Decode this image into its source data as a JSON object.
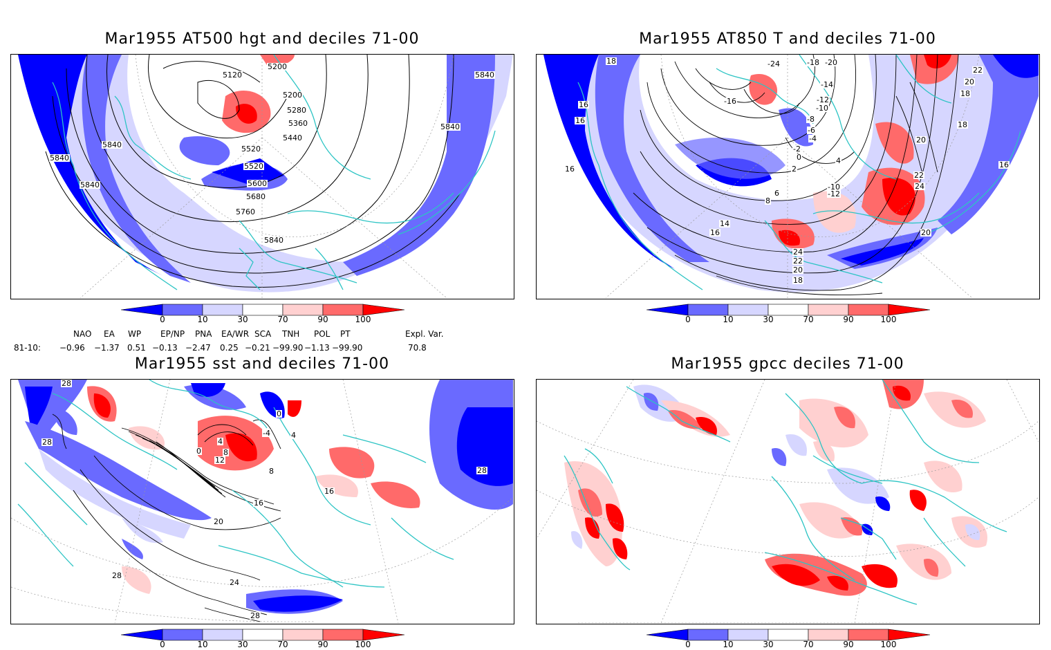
{
  "panels": [
    {
      "id": "p1",
      "title": "Mar1955 AT500 hgt and deciles 71-00",
      "contour_labels": [
        "5200",
        "5120",
        "5200",
        "5280",
        "5360",
        "5440",
        "5520",
        "5520",
        "5600",
        "5680",
        "5760",
        "5840",
        "5840",
        "5840",
        "5840",
        "5840",
        "5840"
      ]
    },
    {
      "id": "p2",
      "title": "Mar1955 AT850 T and deciles 71-00",
      "contour_labels": [
        "18",
        "-24",
        "-18",
        "-20",
        "-16",
        "-14",
        "-12",
        "-10",
        "-8",
        "-6",
        "-4",
        "-2",
        "0",
        "2",
        "4",
        "6",
        "8",
        "-10",
        "-12",
        "14",
        "16",
        "18",
        "20",
        "22",
        "24",
        "16",
        "16",
        "16",
        "18",
        "20",
        "22",
        "24",
        "22",
        "20",
        "18",
        "20",
        "16"
      ]
    },
    {
      "id": "p3",
      "title": "Mar1955 sst and deciles 71-00",
      "contour_labels": [
        "28",
        "28",
        "0",
        "4",
        "8",
        "12",
        "-4",
        "0",
        "4",
        "8",
        "16",
        "16",
        "20",
        "24",
        "28",
        "28",
        "28"
      ]
    },
    {
      "id": "p4",
      "title": "Mar1955 gpcc deciles 71-00",
      "contour_labels": []
    }
  ],
  "colorbar": {
    "ticks": [
      "0",
      "10",
      "30",
      "70",
      "90",
      "100"
    ],
    "colors": [
      "#0000ff",
      "#6a6aff",
      "#d6d6ff",
      "#ffffff",
      "#ffd0d0",
      "#ff6a6a",
      "#ff0000"
    ]
  },
  "indices": {
    "names": [
      "NAO",
      "EA",
      "WP",
      "EP/NP",
      "PNA",
      "EA/WR",
      "SCA",
      "TNH",
      "POL",
      "PT",
      "Expl. Var."
    ],
    "row_label": "81-10:",
    "values": [
      "−0.96",
      "−1.37",
      "0.51",
      "−0.13",
      "−2.47",
      "0.25",
      "−0.21",
      "−99.90",
      "−1.13",
      "−99.90",
      "70.8"
    ]
  },
  "colors": {
    "coast": "#2cc4c4",
    "contour": "#000000",
    "graticule": "#9a9a9a"
  }
}
